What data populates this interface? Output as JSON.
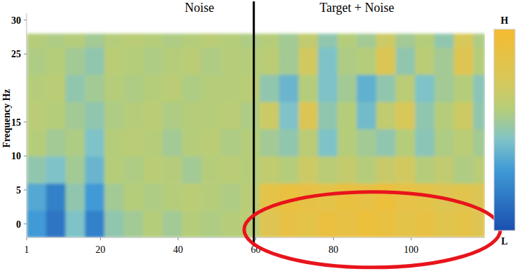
{
  "chart_data": {
    "type": "heatmap",
    "ylabel": "Frequency Hz",
    "annotations": [
      "Noise",
      "Target + Noise"
    ],
    "divider_x": 59.5,
    "highlight": {
      "x": [
        57,
        123
      ],
      "y": [
        -6.4,
        4.7
      ]
    },
    "x_edges": [
      1,
      6,
      11,
      16,
      21,
      26,
      31,
      36,
      41,
      46,
      51,
      56,
      61,
      66,
      71,
      76,
      81,
      86,
      91,
      96,
      101,
      106,
      111,
      116,
      119
    ],
    "y_edges": [
      -2,
      2,
      6,
      10,
      14,
      18,
      22,
      26,
      28
    ],
    "values": [
      [
        0.3,
        0.15,
        0.45,
        0.2,
        0.5,
        0.55,
        0.6,
        0.55,
        0.6,
        0.58,
        0.6,
        0.62,
        0.8,
        0.88,
        0.85,
        0.9,
        0.88,
        0.92,
        0.9,
        0.85,
        0.88,
        0.82,
        0.85,
        0.8
      ],
      [
        0.35,
        0.2,
        0.5,
        0.3,
        0.55,
        0.6,
        0.58,
        0.6,
        0.62,
        0.6,
        0.58,
        0.62,
        0.85,
        0.9,
        0.88,
        0.85,
        0.9,
        0.88,
        0.92,
        0.87,
        0.85,
        0.8,
        0.82,
        0.78
      ],
      [
        0.5,
        0.45,
        0.55,
        0.4,
        0.6,
        0.58,
        0.62,
        0.6,
        0.55,
        0.6,
        0.62,
        0.6,
        0.65,
        0.6,
        0.7,
        0.62,
        0.66,
        0.6,
        0.68,
        0.72,
        0.6,
        0.65,
        0.58,
        0.62
      ],
      [
        0.6,
        0.55,
        0.58,
        0.45,
        0.6,
        0.62,
        0.6,
        0.55,
        0.6,
        0.62,
        0.58,
        0.6,
        0.55,
        0.5,
        0.62,
        0.45,
        0.6,
        0.55,
        0.5,
        0.6,
        0.48,
        0.58,
        0.62,
        0.55
      ],
      [
        0.62,
        0.6,
        0.55,
        0.5,
        0.58,
        0.6,
        0.62,
        0.58,
        0.6,
        0.6,
        0.62,
        0.58,
        0.7,
        0.45,
        0.78,
        0.5,
        0.6,
        0.42,
        0.65,
        0.75,
        0.5,
        0.6,
        0.7,
        0.5
      ],
      [
        0.6,
        0.62,
        0.5,
        0.55,
        0.6,
        0.58,
        0.6,
        0.62,
        0.58,
        0.6,
        0.6,
        0.62,
        0.5,
        0.4,
        0.6,
        0.45,
        0.55,
        0.38,
        0.5,
        0.62,
        0.45,
        0.55,
        0.6,
        0.48
      ],
      [
        0.58,
        0.6,
        0.55,
        0.5,
        0.62,
        0.6,
        0.58,
        0.6,
        0.62,
        0.58,
        0.6,
        0.6,
        0.62,
        0.55,
        0.72,
        0.45,
        0.58,
        0.6,
        0.78,
        0.5,
        0.62,
        0.55,
        0.8,
        0.6
      ],
      [
        0.6,
        0.58,
        0.6,
        0.55,
        0.6,
        0.62,
        0.6,
        0.58,
        0.6,
        0.62,
        0.6,
        0.58,
        0.6,
        0.55,
        0.65,
        0.5,
        0.6,
        0.55,
        0.7,
        0.55,
        0.6,
        0.5,
        0.75,
        0.58
      ]
    ],
    "xlim": [
      1,
      119
    ],
    "ylim": [
      -2,
      31
    ],
    "xticks": [
      1,
      20,
      40,
      60,
      80,
      100
    ],
    "yticks": [
      0,
      5,
      10,
      15,
      25,
      30
    ],
    "color_bar": {
      "range": [
        0,
        1
      ],
      "ticks": [
        {
          "value": 1,
          "label": "H"
        },
        {
          "value": 0,
          "label": "L"
        }
      ]
    },
    "grid": false
  }
}
